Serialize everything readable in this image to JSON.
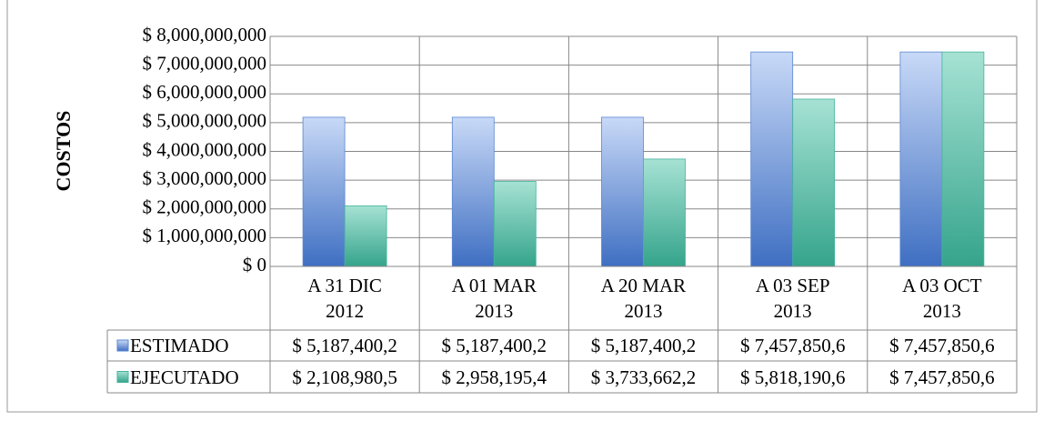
{
  "chart_data": {
    "type": "bar",
    "y_label": "COSTOS",
    "categories": [
      "A 31 DIC\n2012",
      "A 01 MAR\n2013",
      "A 20 MAR\n2013",
      "A 03 SEP\n2013",
      "A 03 OCT\n2013"
    ],
    "series": [
      {
        "name": "ESTIMADO",
        "color": "#5a86d0",
        "values": [
          5187400200,
          5187400200,
          5187400200,
          7457850600,
          7457850600
        ],
        "value_labels": [
          "$ 5,187,400,2",
          "$ 5,187,400,2",
          "$ 5,187,400,2",
          "$ 7,457,850,6",
          "$ 7,457,850,6"
        ]
      },
      {
        "name": "EJECUTADO",
        "color": "#45b39c",
        "values": [
          2108980500,
          2958195400,
          3733662200,
          5818190600,
          7457850600
        ],
        "value_labels": [
          "$ 2,108,980,5",
          "$ 2,958,195,4",
          "$ 3,733,662,2",
          "$ 5,818,190,6",
          "$ 7,457,850,6"
        ]
      }
    ],
    "ylim": [
      0,
      8000000000
    ],
    "yticks": [
      {
        "value": 0,
        "label": "$ 0"
      },
      {
        "value": 1000000000,
        "label": "$ 1,000,000,000"
      },
      {
        "value": 2000000000,
        "label": "$ 2,000,000,000"
      },
      {
        "value": 3000000000,
        "label": "$ 3,000,000,000"
      },
      {
        "value": 4000000000,
        "label": "$ 4,000,000,000"
      },
      {
        "value": 5000000000,
        "label": "$ 5,000,000,000"
      },
      {
        "value": 6000000000,
        "label": "$ 6,000,000,000"
      },
      {
        "value": 7000000000,
        "label": "$ 7,000,000,000"
      },
      {
        "value": 8000000000,
        "label": "$ 8,000,000,000"
      }
    ],
    "grid": true
  }
}
